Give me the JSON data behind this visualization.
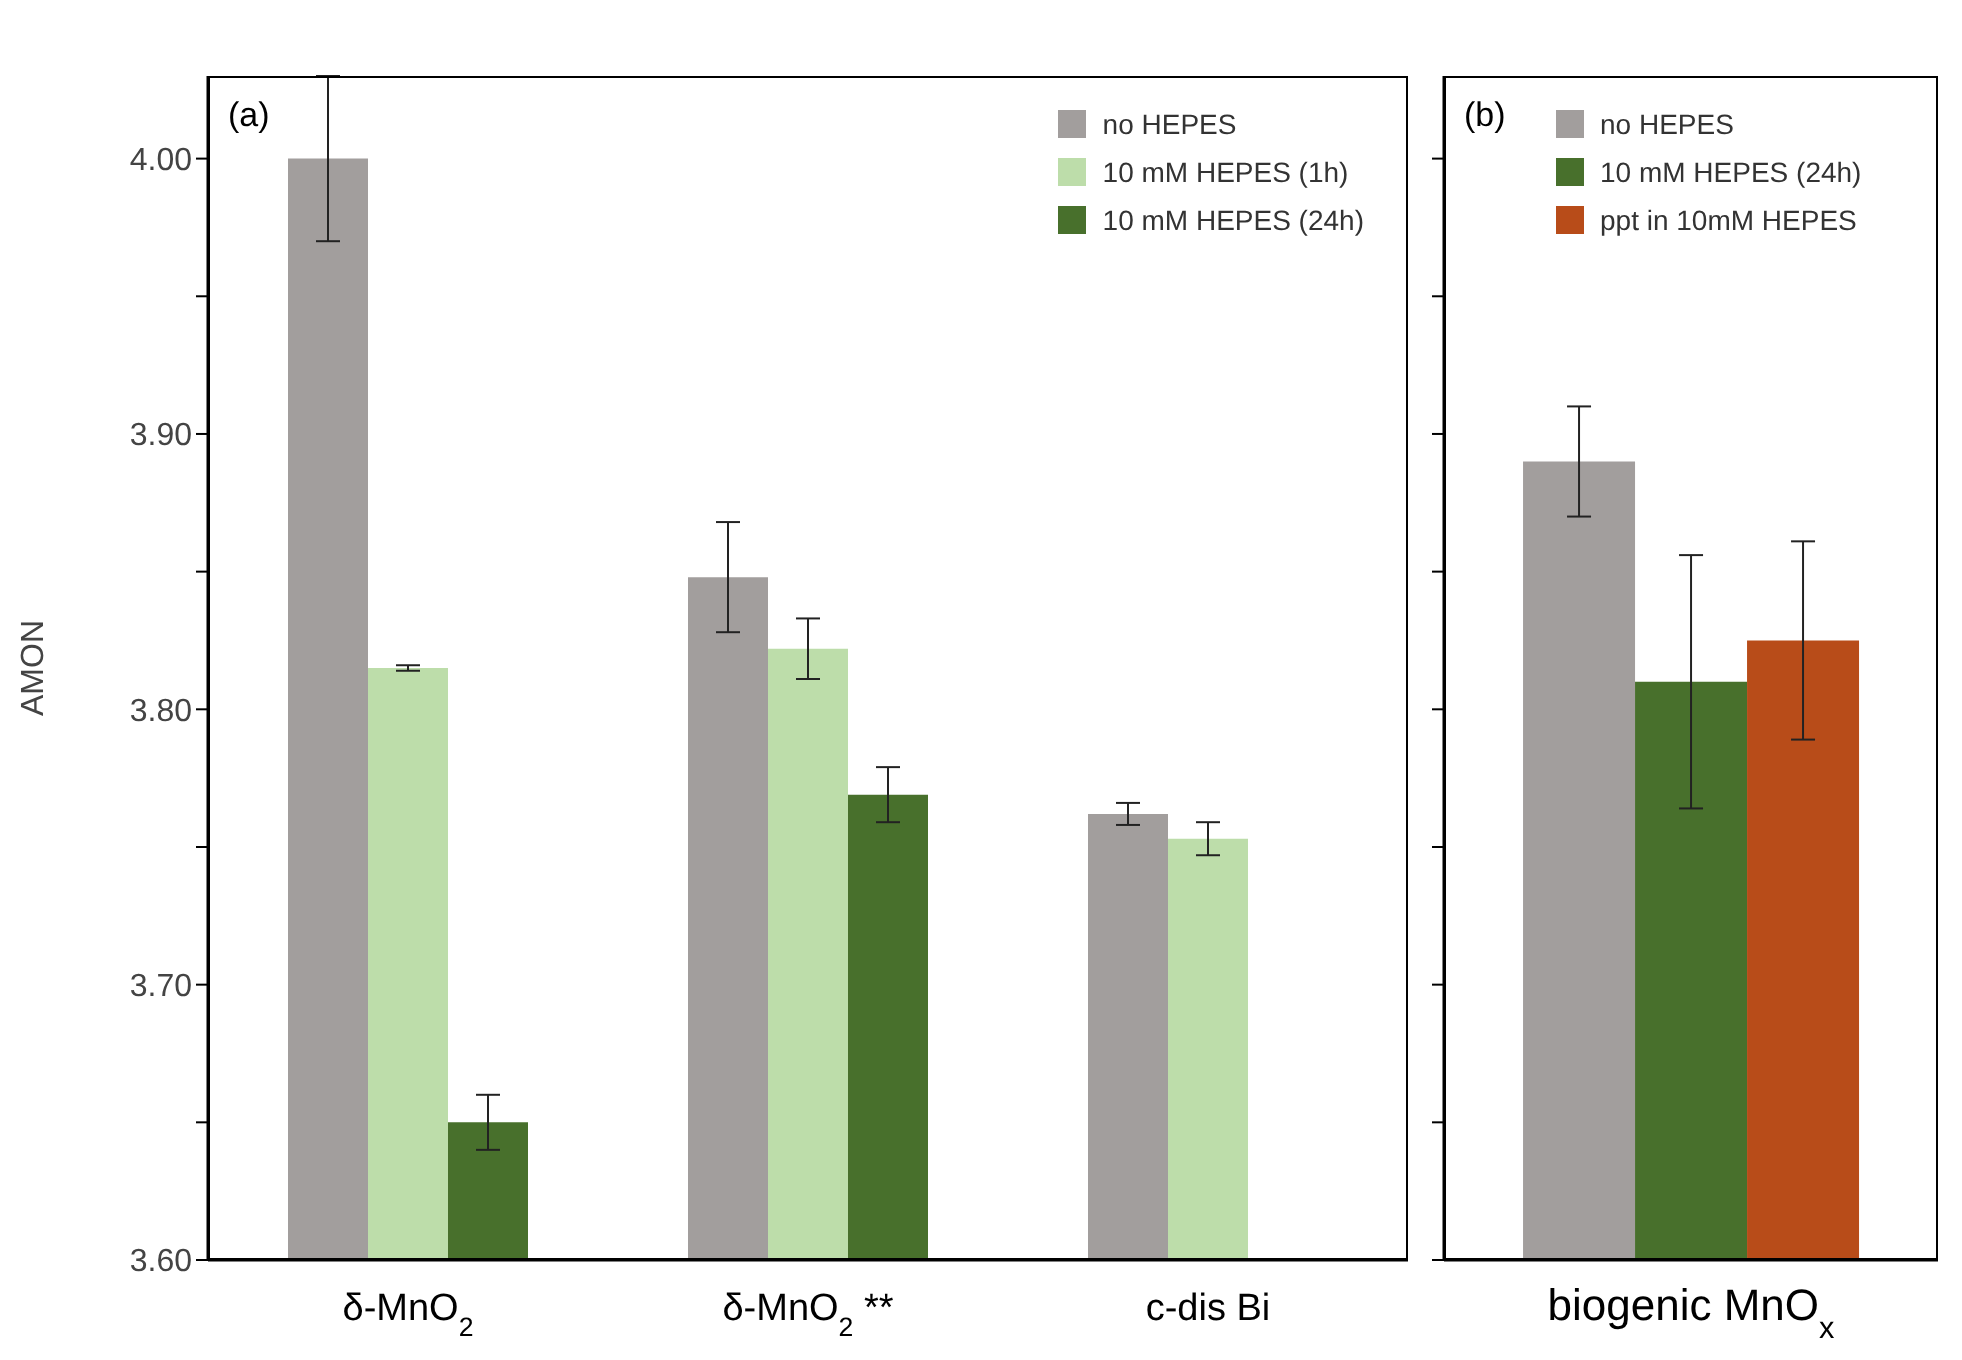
{
  "chart_data": [
    {
      "type": "bar",
      "ylabel": "AMON",
      "annotations": [
        "(a)"
      ],
      "categories": [
        "δ-MnO$_{2}$",
        "δ-MnO$_{2}$ **",
        "c-dis Bi"
      ],
      "series": [
        {
          "name": "no HEPES",
          "color": "#a29e9d",
          "values": [
            4.0,
            3.848,
            3.762
          ],
          "errors": [
            0.03,
            0.02,
            0.004
          ]
        },
        {
          "name": "10 mM HEPES (1h)",
          "color": "#bdddaa",
          "values": [
            3.815,
            3.822,
            3.753
          ],
          "errors": [
            0.001,
            0.011,
            0.006
          ]
        },
        {
          "name": "10 mM HEPES (24h)",
          "color": "#48702c",
          "values": [
            3.65,
            3.769,
            null
          ],
          "errors": [
            0.01,
            0.01,
            null
          ]
        }
      ],
      "ylim": [
        3.6,
        4.03
      ],
      "yticks": [
        {
          "value": 3.6,
          "label": "3.60"
        },
        {
          "value": 3.65,
          "label": null
        },
        {
          "value": 3.7,
          "label": "3.70"
        },
        {
          "value": 3.75,
          "label": null
        },
        {
          "value": 3.8,
          "label": "3.80"
        },
        {
          "value": 3.85,
          "label": null
        },
        {
          "value": 3.9,
          "label": "3.90"
        },
        {
          "value": 3.95,
          "label": null
        },
        {
          "value": 4.0,
          "label": "4.00"
        }
      ],
      "grid": false,
      "legend": "top right"
    },
    {
      "type": "bar",
      "annotations": [
        "(b)"
      ],
      "categories": [
        "biogenic MnO$_{x}$"
      ],
      "series": [
        {
          "name": "no HEPES",
          "color": "#a29e9d",
          "values": [
            3.89
          ],
          "errors": [
            0.02
          ]
        },
        {
          "name": "10 mM HEPES (24h)",
          "color": "#48702c",
          "values": [
            3.81
          ],
          "errors": [
            0.046
          ]
        },
        {
          "name": "ppt in 10mM HEPES",
          "color": "#b84c19",
          "values": [
            3.825
          ],
          "errors": [
            0.036
          ]
        }
      ],
      "ylim": [
        3.6,
        4.03
      ],
      "yticks": [
        {
          "value": 3.6,
          "label": null
        },
        {
          "value": 3.65,
          "label": null
        },
        {
          "value": 3.7,
          "label": null
        },
        {
          "value": 3.75,
          "label": null
        },
        {
          "value": 3.8,
          "label": null
        },
        {
          "value": 3.85,
          "label": null
        },
        {
          "value": 3.9,
          "label": null
        },
        {
          "value": 3.95,
          "label": null
        },
        {
          "value": 4.0,
          "label": null
        }
      ],
      "tick_labels": "x",
      "grid": false,
      "legend": "top"
    }
  ]
}
